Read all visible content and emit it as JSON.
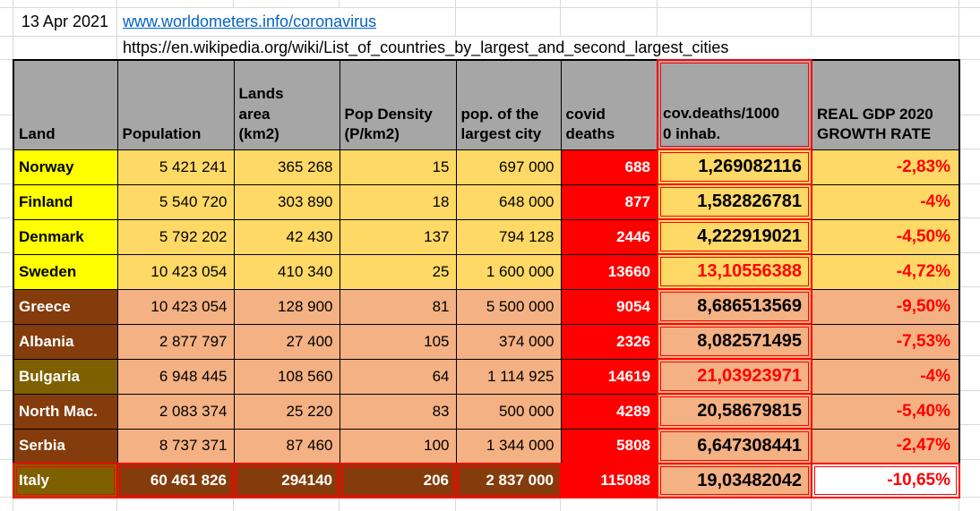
{
  "sheet": {
    "date": "13 Apr 2021",
    "worldometers_link": "www.worldometers.info/coronavirus",
    "wikipedia_url": "https://en.wikipedia.org/wiki/List_of_countries_by_largest_and_second_largest_cities"
  },
  "table": {
    "headers": [
      "Land",
      "Population",
      "Lands\narea\n(km2)",
      "Pop Density\n(P/km2)",
      "pop. of the\nlargest city",
      "covid\ndeaths",
      "cov.deaths/1000\n0 inhab.",
      "REAL GDP 2020\nGROWTH RATE"
    ],
    "rows": [
      {
        "land": "Norway",
        "population": "5 421 241",
        "area": "365 268",
        "density": "15",
        "largest_city": "697 000",
        "covid_deaths": "688",
        "deaths_per_10000": "1,269082116",
        "gdp": "-2,83%",
        "group": "nordic",
        "name_color": "yellow",
        "ratio_red": false
      },
      {
        "land": "Finland",
        "population": "5 540 720",
        "area": "303 890",
        "density": "18",
        "largest_city": "648 000",
        "covid_deaths": "877",
        "deaths_per_10000": "1,582826781",
        "gdp": "-4%",
        "group": "nordic",
        "name_color": "yellow",
        "ratio_red": false
      },
      {
        "land": "Denmark",
        "population": "5 792 202",
        "area": "42 430",
        "density": "137",
        "largest_city": "794 128",
        "covid_deaths": "2446",
        "deaths_per_10000": "4,222919021",
        "gdp": "-4,50%",
        "group": "nordic",
        "name_color": "yellow",
        "ratio_red": false
      },
      {
        "land": "Sweden",
        "population": "10 423 054",
        "area": "410 340",
        "density": "25",
        "largest_city": "1 600 000",
        "covid_deaths": "13660",
        "deaths_per_10000": "13,10556388",
        "gdp": "-4,72%",
        "group": "nordic",
        "name_color": "yellow",
        "ratio_red": true
      },
      {
        "land": "Greece",
        "population": "10 423 054",
        "area": "128 900",
        "density": "81",
        "largest_city": "5 500 000",
        "covid_deaths": "9054",
        "deaths_per_10000": "8,686513569",
        "gdp": "-9,50%",
        "group": "balkan",
        "name_color": "brown",
        "ratio_red": false
      },
      {
        "land": "Albania",
        "population": "2 877 797",
        "area": "27 400",
        "density": "105",
        "largest_city": "374 000",
        "covid_deaths": "2326",
        "deaths_per_10000": "8,082571495",
        "gdp": "-7,53%",
        "group": "balkan",
        "name_color": "brown",
        "ratio_red": false
      },
      {
        "land": "Bulgaria",
        "population": "6 948 445",
        "area": "108 560",
        "density": "64",
        "largest_city": "1 114 925",
        "covid_deaths": "14619",
        "deaths_per_10000": "21,03923971",
        "gdp": "-4%",
        "group": "balkan",
        "name_color": "olive",
        "ratio_red": true
      },
      {
        "land": "North Mac.",
        "population": "2 083 374",
        "area": "25 220",
        "density": "83",
        "largest_city": "500 000",
        "covid_deaths": "4289",
        "deaths_per_10000": "20,58679815",
        "gdp": "-5,40%",
        "group": "balkan",
        "name_color": "brown",
        "ratio_red": false
      },
      {
        "land": "Serbia",
        "population": "8 737 371",
        "area": "87 460",
        "density": "100",
        "largest_city": "1 344 000",
        "covid_deaths": "5808",
        "deaths_per_10000": "6,647308441",
        "gdp": "-2,47%",
        "group": "balkan",
        "name_color": "brown",
        "ratio_red": false
      },
      {
        "land": "Italy",
        "population": "60 461 826",
        "area": "294140",
        "density": "206",
        "largest_city": "2 837 000",
        "covid_deaths": "115088",
        "deaths_per_10000": "19,03482042",
        "gdp": "-10,65%",
        "group": "italy",
        "name_color": "olive",
        "ratio_red": false
      }
    ]
  },
  "colors": {
    "yellow": "#FFFF00",
    "gold": "#FFD966",
    "salmon": "#F4B183",
    "brown": "#843C0C",
    "olive": "#7F6000",
    "red": "#FF0000",
    "gray": "#A6A6A6",
    "link": "#0563C1"
  }
}
